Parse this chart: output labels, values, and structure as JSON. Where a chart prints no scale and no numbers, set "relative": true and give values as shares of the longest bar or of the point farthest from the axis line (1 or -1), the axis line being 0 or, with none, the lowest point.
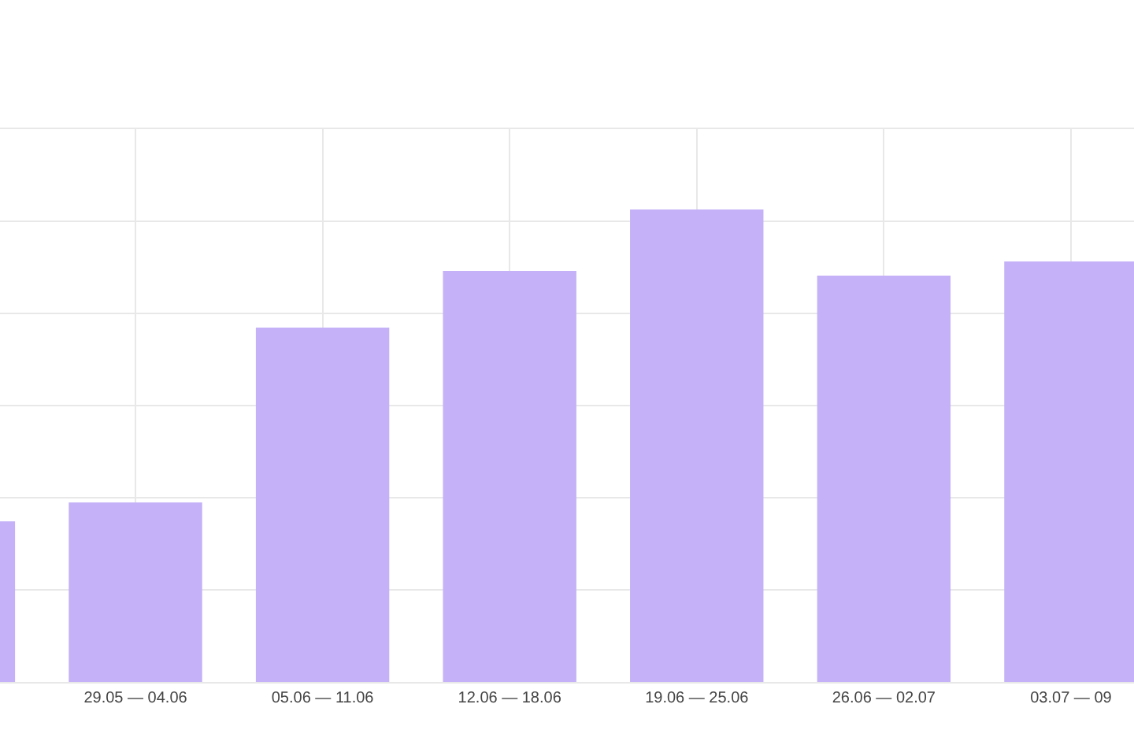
{
  "chart_data": {
    "type": "bar",
    "relative": true,
    "grid": true,
    "color": "#c4b1f7",
    "categories": [
      null,
      "29.05 — 04.06",
      "05.06 — 11.06",
      "12.06 — 18.06",
      "19.06 — 25.06",
      "26.06 — 02.07",
      "03.07 — 09"
    ],
    "values": [
      0.34,
      0.38,
      0.75,
      0.87,
      1,
      0.86,
      0.89
    ]
  }
}
